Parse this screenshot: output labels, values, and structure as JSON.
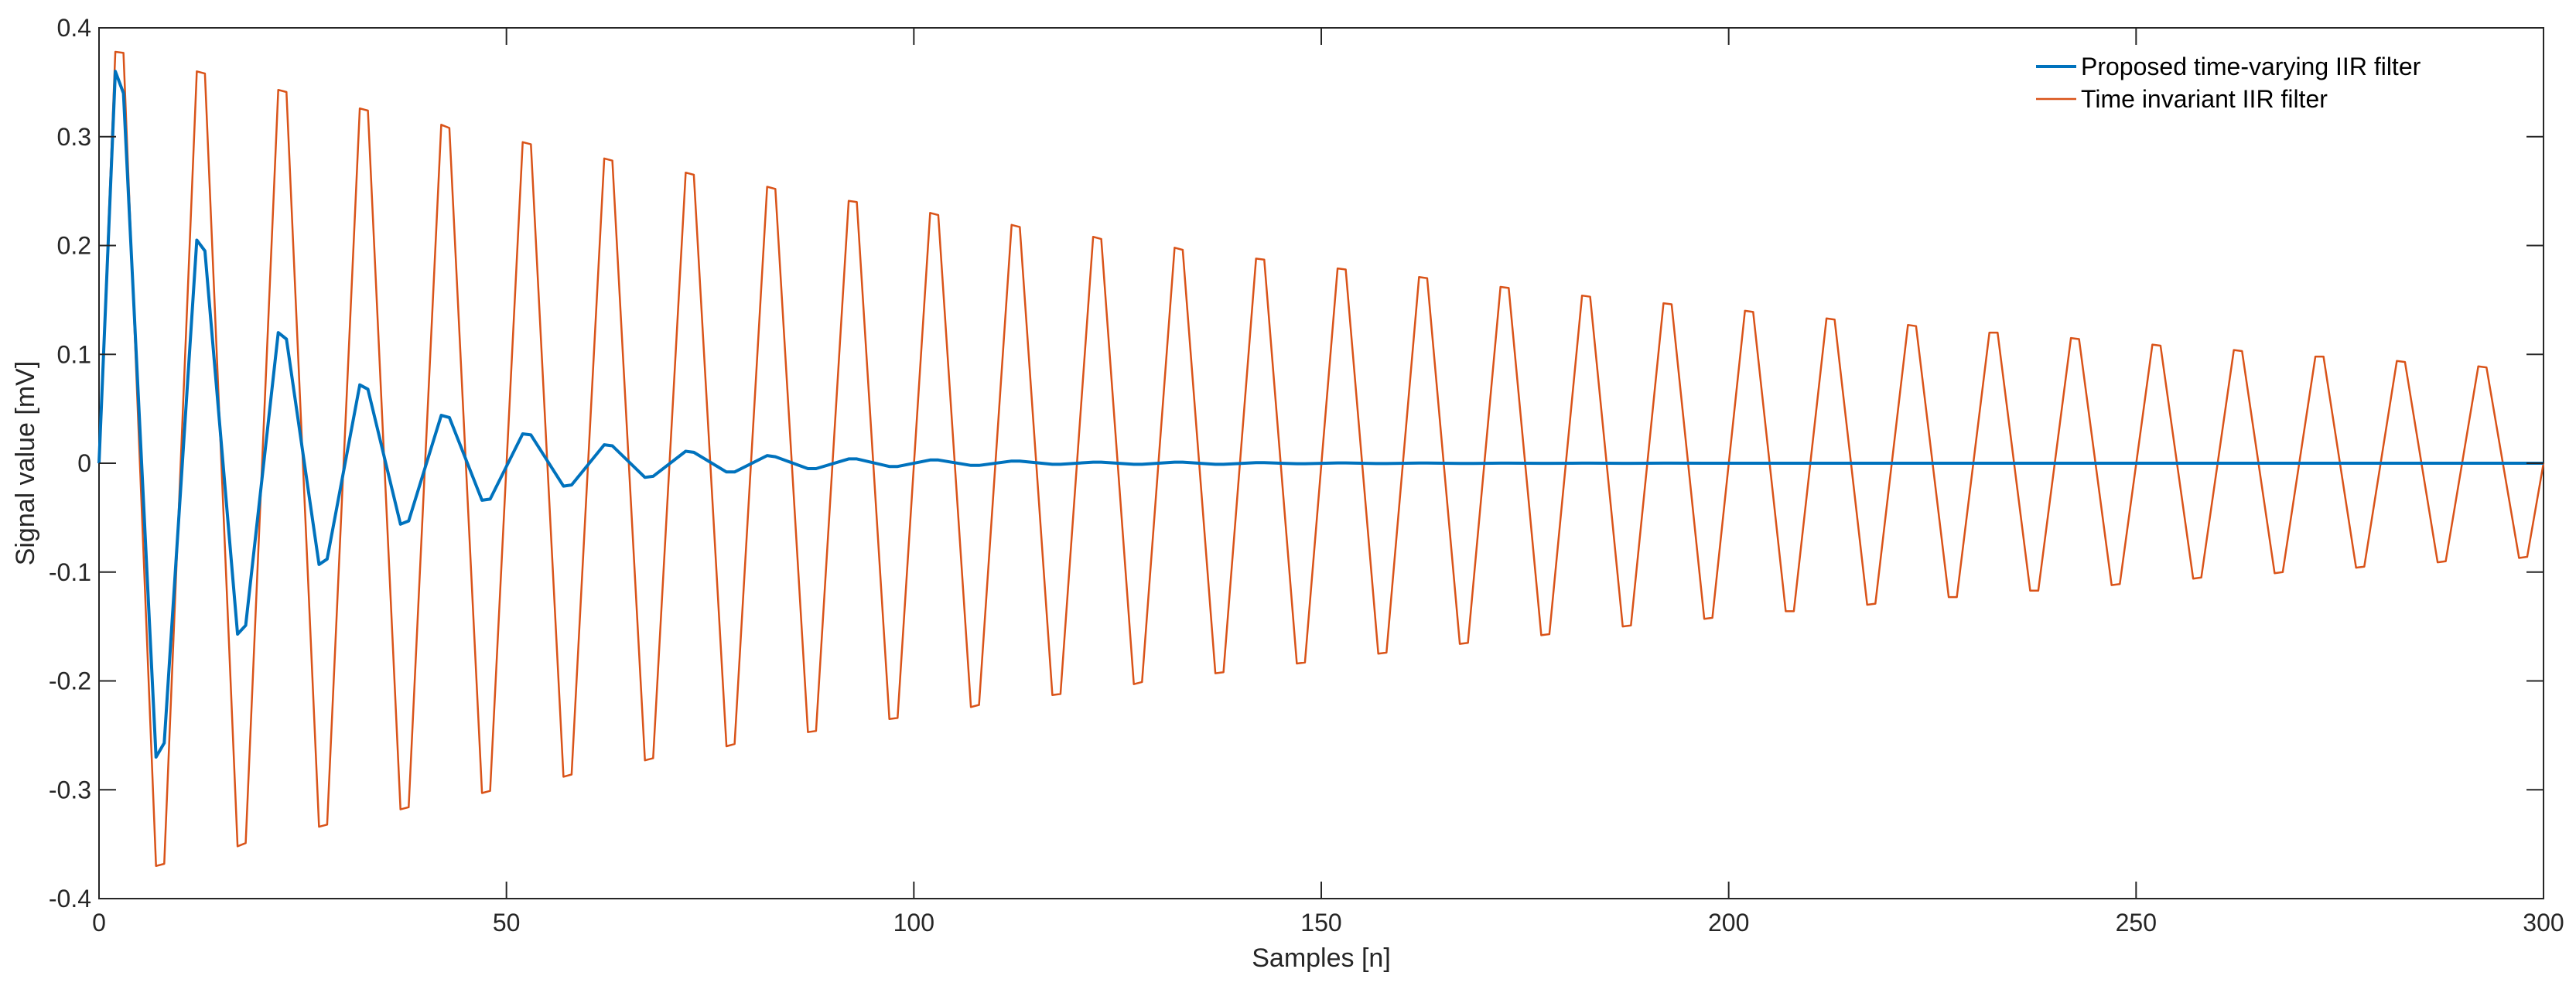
{
  "chart_data": {
    "type": "line",
    "title": "",
    "xlabel": "Samples [n]",
    "ylabel": "Signal value [mV]",
    "xlim": [
      0,
      300
    ],
    "ylim": [
      -0.4,
      0.4
    ],
    "xticks": [
      0,
      50,
      100,
      150,
      200,
      250,
      300
    ],
    "yticks": [
      -0.4,
      -0.3,
      -0.2,
      -0.1,
      0,
      0.1,
      0.2,
      0.3,
      0.4
    ],
    "xtick_labels": [
      "0",
      "50",
      "100",
      "150",
      "200",
      "250",
      "300"
    ],
    "ytick_labels": [
      "-0.4",
      "-0.3",
      "-0.2",
      "-0.1",
      "0",
      "0.1",
      "0.2",
      "0.3",
      "0.4"
    ],
    "grid": false,
    "legend_position": "top-right",
    "series": [
      {
        "name": "Proposed time-varying IIR filter",
        "color": "#0072BD",
        "x": [
          0,
          2,
          3,
          7,
          8,
          12,
          13,
          17,
          18,
          22,
          23,
          27,
          28,
          32,
          33,
          37,
          38,
          42,
          43,
          47,
          48,
          52,
          53,
          57,
          58,
          62,
          63,
          67,
          68,
          72,
          73,
          77,
          78,
          82,
          83,
          87,
          88,
          92,
          93,
          97,
          98,
          102,
          103,
          107,
          108,
          112,
          113,
          117,
          118,
          122,
          123,
          127,
          128,
          132,
          133,
          137,
          138,
          142,
          143,
          147,
          148,
          152,
          153,
          157,
          158,
          162,
          163,
          167,
          168,
          172,
          173,
          177,
          178,
          182,
          183,
          187,
          188,
          192,
          193,
          197,
          198,
          202,
          203,
          300
        ],
        "y": [
          0,
          0.36,
          0.34,
          -0.27,
          -0.257,
          0.205,
          0.195,
          -0.157,
          -0.149,
          0.12,
          0.114,
          -0.093,
          -0.088,
          0.072,
          0.068,
          -0.056,
          -0.053,
          0.044,
          0.042,
          -0.034,
          -0.033,
          0.027,
          0.026,
          -0.021,
          -0.02,
          0.017,
          0.016,
          -0.013,
          -0.012,
          0.011,
          0.01,
          -0.008,
          -0.008,
          0.007,
          0.006,
          -0.005,
          -0.005,
          0.004,
          0.004,
          -0.003,
          -0.003,
          0.003,
          0.003,
          -0.002,
          -0.002,
          0.002,
          0.002,
          -0.001,
          -0.001,
          0.001,
          0.001,
          -0.001,
          -0.001,
          0.001,
          0.001,
          -0.001,
          -0.001,
          0.0005,
          0.0005,
          -0.0004,
          -0.0004,
          0.0003,
          0.0003,
          -0.0003,
          -0.0003,
          0.0002,
          0.0002,
          -0.0002,
          -0.0002,
          0.0001,
          0.0001,
          -0.0001,
          -0.0001,
          0.0001,
          0.0001,
          -0.0001,
          -0.0001,
          0.0001,
          0.0001,
          0,
          0,
          0,
          0,
          0
        ]
      },
      {
        "name": "Time invariant IIR filter",
        "color": "#D95319",
        "x": [
          0,
          2,
          3,
          7,
          8,
          12,
          13,
          17,
          18,
          22,
          23,
          27,
          28,
          32,
          33,
          37,
          38,
          42,
          43,
          47,
          48,
          52,
          53,
          57,
          58,
          62,
          63,
          67,
          68,
          72,
          73,
          77,
          78,
          82,
          83,
          87,
          88,
          92,
          93,
          97,
          98,
          102,
          103,
          107,
          108,
          112,
          113,
          117,
          118,
          122,
          123,
          127,
          128,
          132,
          133,
          137,
          138,
          142,
          143,
          147,
          148,
          152,
          153,
          157,
          158,
          162,
          163,
          167,
          168,
          172,
          173,
          177,
          178,
          182,
          183,
          187,
          188,
          192,
          193,
          197,
          198,
          202,
          203,
          207,
          208,
          212,
          213,
          217,
          218,
          222,
          223,
          227,
          228,
          232,
          233,
          237,
          238,
          242,
          243,
          247,
          248,
          252,
          253,
          257,
          258,
          262,
          263,
          267,
          268,
          272,
          273,
          277,
          278,
          282,
          283,
          287,
          288,
          292,
          293,
          297,
          298,
          300
        ],
        "y": [
          0,
          0.378,
          0.377,
          -0.37,
          -0.368,
          0.36,
          0.358,
          -0.352,
          -0.349,
          0.343,
          0.341,
          -0.334,
          -0.332,
          0.326,
          0.324,
          -0.318,
          -0.316,
          0.311,
          0.308,
          -0.303,
          -0.301,
          0.295,
          0.293,
          -0.288,
          -0.286,
          0.28,
          0.278,
          -0.273,
          -0.271,
          0.267,
          0.265,
          -0.26,
          -0.258,
          0.254,
          0.252,
          -0.247,
          -0.246,
          0.241,
          0.24,
          -0.235,
          -0.234,
          0.23,
          0.228,
          -0.224,
          -0.222,
          0.219,
          0.217,
          -0.213,
          -0.212,
          0.208,
          0.206,
          -0.203,
          -0.201,
          0.198,
          0.196,
          -0.193,
          -0.192,
          0.188,
          0.187,
          -0.184,
          -0.183,
          0.179,
          0.178,
          -0.175,
          -0.174,
          0.171,
          0.17,
          -0.166,
          -0.165,
          0.162,
          0.161,
          -0.158,
          -0.157,
          0.154,
          0.153,
          -0.15,
          -0.149,
          0.147,
          0.146,
          -0.143,
          -0.142,
          0.14,
          0.139,
          -0.136,
          -0.136,
          0.133,
          0.132,
          -0.13,
          -0.129,
          0.127,
          0.126,
          -0.123,
          -0.123,
          0.12,
          0.12,
          -0.117,
          -0.117,
          0.115,
          0.114,
          -0.112,
          -0.111,
          0.109,
          0.108,
          -0.106,
          -0.105,
          0.104,
          0.103,
          -0.101,
          -0.1,
          0.098,
          0.098,
          -0.096,
          -0.095,
          0.094,
          0.093,
          -0.091,
          -0.09,
          0.089,
          0.088,
          -0.087,
          -0.086,
          0
        ]
      }
    ]
  }
}
